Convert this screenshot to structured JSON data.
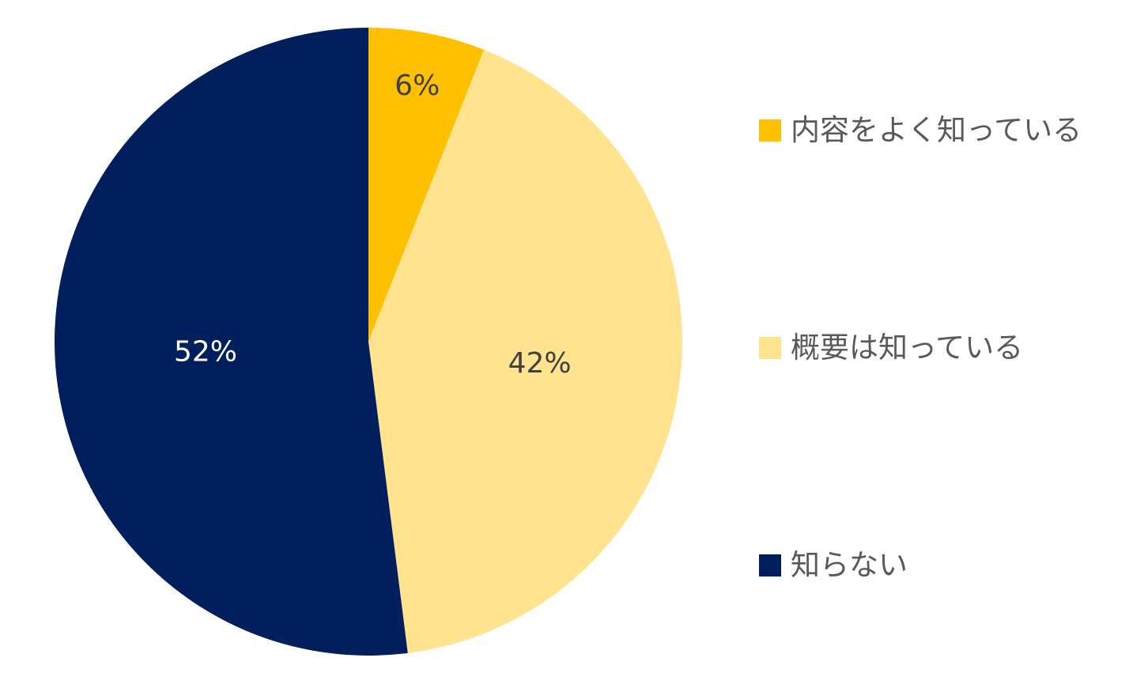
{
  "chart_data": {
    "type": "pie",
    "title": "",
    "start_angle_deg": 0,
    "direction": "clockwise",
    "legend_position": "right",
    "categories": [
      "内容をよく知っている",
      "概要は知っている",
      "知らない"
    ],
    "values": [
      6,
      42,
      52
    ],
    "data_labels": [
      "6%",
      "42%",
      "52%"
    ],
    "colors": [
      "#FFC000",
      "#FFE38E",
      "#001F5C"
    ],
    "label_colors": [
      "#404040",
      "#404040",
      "#FFFFFF"
    ]
  }
}
